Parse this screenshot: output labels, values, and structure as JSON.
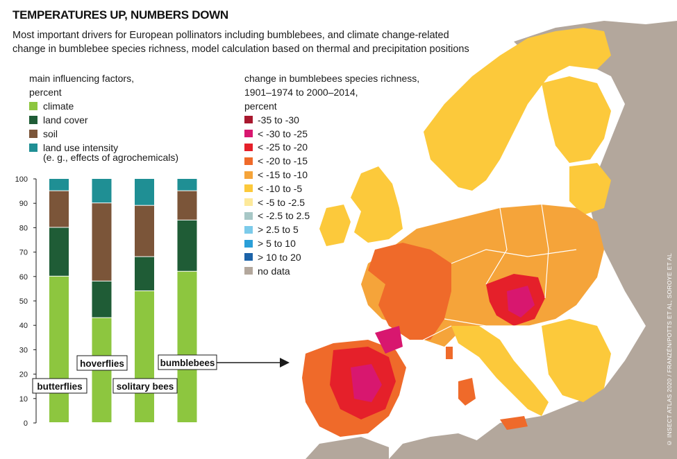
{
  "header": {
    "title": "TEMPERATURES UP, NUMBERS DOWN",
    "subtitle": "Most important drivers for European pollinators including bumblebees, and climate change-related change in bumblebee species richness, model calculation based on thermal and precipitation positions"
  },
  "credit": "© INSECT ATLAS 2020 / FRANZÉN/POTTS ET AL, SOROYE ET AL",
  "colors": {
    "climate": "#8dc63f",
    "land_cover": "#1f5c36",
    "soil": "#7b5539",
    "land_use_intensity": "#1f8f94",
    "sea": "#ffffff",
    "land_no_data": "#b3a79c"
  },
  "factor_legend": {
    "title_line1": "main influencing factors,",
    "title_line2": "percent",
    "items": [
      {
        "label": "climate",
        "color": "#8dc63f"
      },
      {
        "label": "land cover",
        "color": "#1f5c36"
      },
      {
        "label": "soil",
        "color": "#7b5539"
      },
      {
        "label": "land use intensity",
        "color": "#1f8f94"
      }
    ],
    "note": "(e. g., effects of agrochemicals)"
  },
  "richness_legend": {
    "title_line1": "change in bumblebees species richness,",
    "title_line2": "1901–1974 to 2000–2014,",
    "title_line3": "percent",
    "items": [
      {
        "label": "-35 to -30",
        "color": "#a8182e"
      },
      {
        "label": "< -30 to -25",
        "color": "#d8176f"
      },
      {
        "label": "< -25 to -20",
        "color": "#e5202a"
      },
      {
        "label": "< -20 to -15",
        "color": "#ef6a2a"
      },
      {
        "label": "< -15 to -10",
        "color": "#f5a43a"
      },
      {
        "label": "< -10 to -5",
        "color": "#fcc93b"
      },
      {
        "label": "< -5 to -2.5",
        "color": "#fde99a"
      },
      {
        "label": "< -2.5 to 2.5",
        "color": "#a7c7c6"
      },
      {
        "label": "> 2.5 to 5",
        "color": "#7ccbea"
      },
      {
        "label": "> 5 to 10",
        "color": "#2a9fd8"
      },
      {
        "label": "> 10 to 20",
        "color": "#1c63a8"
      },
      {
        "label": "no data",
        "color": "#b3a79c"
      }
    ]
  },
  "chart_data": {
    "type": "bar",
    "stacked": true,
    "categories": [
      "butterflies",
      "hoverflies",
      "solitary bees",
      "bumblebees"
    ],
    "ylim": [
      0,
      100
    ],
    "yticks": [
      0,
      10,
      20,
      30,
      40,
      50,
      60,
      70,
      80,
      90,
      100
    ],
    "series": [
      {
        "name": "climate",
        "color": "#8dc63f",
        "values": [
          60,
          43,
          54,
          62
        ]
      },
      {
        "name": "land cover",
        "color": "#1f5c36",
        "values": [
          20,
          15,
          14,
          21
        ]
      },
      {
        "name": "soil",
        "color": "#7b5539",
        "values": [
          15,
          32,
          21,
          12
        ]
      },
      {
        "name": "land use intensity",
        "color": "#1f8f94",
        "values": [
          5,
          10,
          11,
          5
        ]
      }
    ],
    "grid": false
  }
}
